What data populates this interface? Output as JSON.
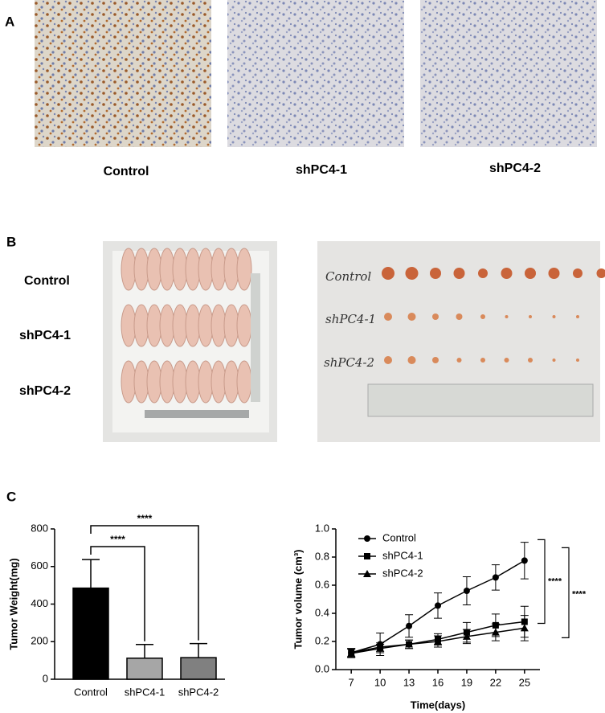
{
  "panel_letters": [
    "A",
    "B",
    "C"
  ],
  "panel_a_labels": [
    "Control",
    "shPC4-1",
    "shPC4-2"
  ],
  "panel_b_labels": [
    "Control",
    "shPC4-1",
    "shPC4-2"
  ],
  "photo_labels": [
    "Control",
    "shPC4-1",
    "shPC4-2"
  ],
  "chart_data": [
    {
      "type": "bar",
      "ylabel": "Tumor Weight(mg)",
      "categories": [
        "Control",
        "shPC4-1",
        "shPC4-2"
      ],
      "values": [
        485,
        112,
        115
      ],
      "errors": [
        152,
        73,
        75
      ],
      "colors": [
        "#000000",
        "#a6a6a6",
        "#808080"
      ],
      "ylim": [
        0,
        800
      ],
      "yticks": [
        0,
        200,
        400,
        600,
        800
      ],
      "annotations": [
        {
          "text": "****",
          "between": [
            0,
            1
          ]
        },
        {
          "text": "****",
          "between": [
            0,
            2
          ]
        }
      ]
    },
    {
      "type": "line",
      "xlabel": "Time(days)",
      "ylabel": "Tumor volume (cm³)",
      "x": [
        7,
        10,
        13,
        16,
        19,
        22,
        25
      ],
      "xlim": [
        5.4,
        26.6
      ],
      "xticks": [
        7,
        10,
        13,
        16,
        19,
        22,
        25
      ],
      "ylim": [
        0,
        1.0
      ],
      "yticks": [
        {
          "value": 0,
          "label": "0.0"
        },
        0.2,
        0.4,
        0.6,
        0.8,
        {
          "value": 1.0,
          "label": "1.0"
        }
      ],
      "legend": "upper left",
      "series": [
        {
          "name": "Control",
          "color": "#000000",
          "marker": "circle",
          "values": [
            0.12,
            0.18,
            0.31,
            0.455,
            0.56,
            0.655,
            0.775
          ],
          "errors": [
            0.03,
            0.08,
            0.08,
            0.09,
            0.1,
            0.09,
            0.13
          ]
        },
        {
          "name": "shPC4-1",
          "color": "#000000",
          "marker": "square",
          "values": [
            0.12,
            0.16,
            0.18,
            0.215,
            0.265,
            0.315,
            0.34
          ],
          "errors": [
            0.03,
            0.03,
            0.03,
            0.04,
            0.07,
            0.08,
            0.11
          ]
        },
        {
          "name": "shPC4-2",
          "color": "#000000",
          "marker": "triangle",
          "values": [
            0.115,
            0.15,
            0.18,
            0.2,
            0.235,
            0.265,
            0.295
          ],
          "errors": [
            0.03,
            0.03,
            0.03,
            0.04,
            0.05,
            0.06,
            0.09
          ]
        }
      ],
      "annotations": [
        {
          "text": "****",
          "between": [
            0,
            1
          ]
        },
        {
          "text": "****",
          "between": [
            0,
            2
          ]
        }
      ]
    }
  ]
}
